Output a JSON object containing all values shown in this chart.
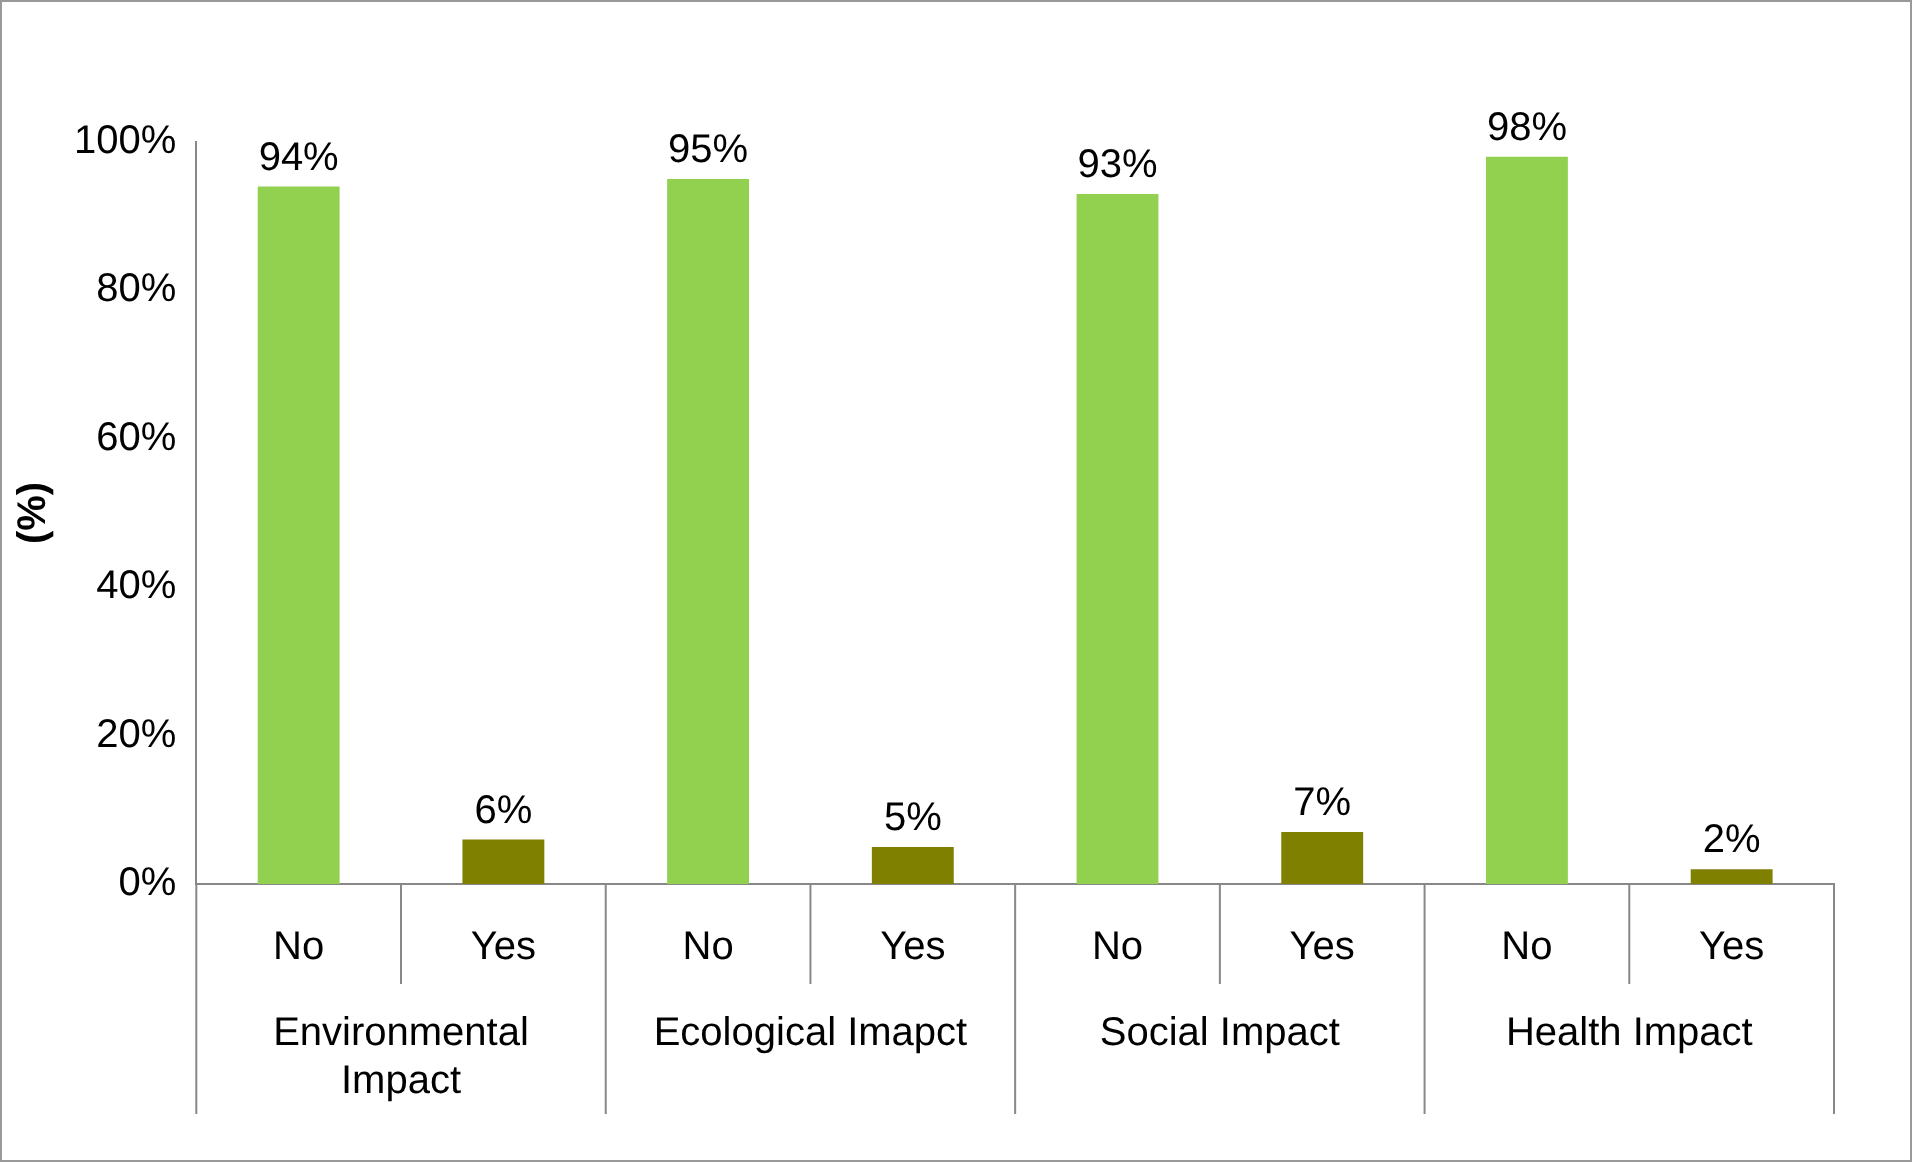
{
  "chart_data": {
    "type": "bar",
    "ylabel": "(%)",
    "categories": [
      "Environmental Impact",
      "Ecological Imapct",
      "Social Impact",
      "Health Impact"
    ],
    "series": [
      {
        "name": "No",
        "color": "#92d050",
        "values": [
          94,
          95,
          93,
          98
        ],
        "value_labels": [
          "94%",
          "95%",
          "93%",
          "98%"
        ]
      },
      {
        "name": "Yes",
        "color": "#808000",
        "values": [
          6,
          5,
          7,
          2
        ],
        "value_labels": [
          "6%",
          "5%",
          "7%",
          "2%"
        ]
      }
    ],
    "ylim": [
      0,
      100
    ],
    "yticks": [
      {
        "value": 0,
        "label": "0%"
      },
      {
        "value": 20,
        "label": "20%"
      },
      {
        "value": 40,
        "label": "40%"
      },
      {
        "value": 60,
        "label": "60%"
      },
      {
        "value": 80,
        "label": "80%"
      },
      {
        "value": 100,
        "label": "100%"
      }
    ],
    "grid": false,
    "legend": false
  }
}
